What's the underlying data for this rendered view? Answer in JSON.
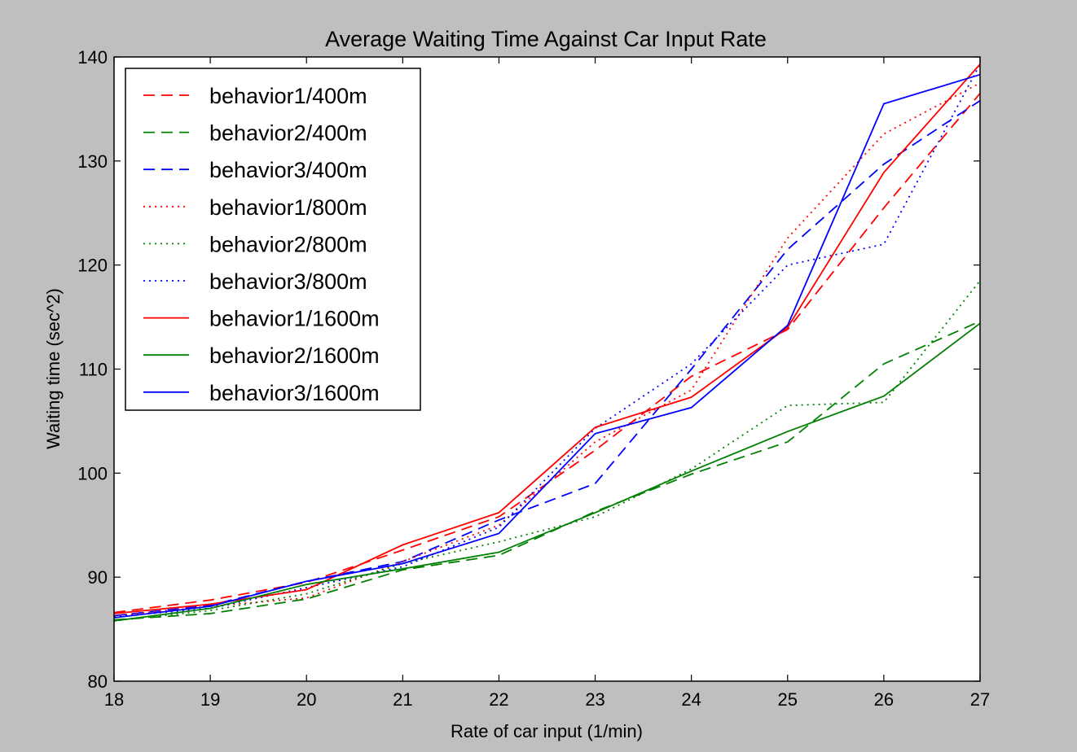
{
  "chart_data": {
    "type": "line",
    "title": "Average Waiting Time Against Car Input Rate",
    "xlabel": "Rate of car input (1/min)",
    "ylabel": "Waiting time (sec^2)",
    "xlim": [
      18,
      27
    ],
    "ylim": [
      80,
      140
    ],
    "xticks": [
      "18",
      "19",
      "20",
      "21",
      "22",
      "23",
      "24",
      "25",
      "26",
      "27"
    ],
    "yticks": [
      "80",
      "90",
      "100",
      "110",
      "120",
      "130",
      "140"
    ],
    "grid": false,
    "legend_position": "top-left",
    "x": [
      18,
      19,
      20,
      21,
      22,
      23,
      24,
      25,
      26,
      27
    ],
    "series": [
      {
        "name": "behavior1/400m",
        "color": "#ff0000",
        "style": "dashed",
        "values": [
          86.6,
          87.8,
          89.5,
          92.6,
          95.8,
          102.2,
          109.3,
          113.8,
          125.5,
          136.5
        ]
      },
      {
        "name": "behavior2/400m",
        "color": "#008000",
        "style": "dashed",
        "values": [
          85.9,
          86.5,
          87.9,
          90.7,
          92.1,
          96.3,
          99.9,
          103.0,
          110.5,
          114.6
        ]
      },
      {
        "name": "behavior3/400m",
        "color": "#0000ff",
        "style": "dashed",
        "values": [
          86.3,
          87.3,
          89.6,
          91.5,
          95.5,
          99.0,
          110.0,
          121.5,
          129.7,
          135.8
        ]
      },
      {
        "name": "behavior1/800m",
        "color": "#ff0000",
        "style": "dotted",
        "values": [
          86.3,
          87.2,
          88.0,
          91.5,
          95.0,
          103.0,
          108.0,
          122.6,
          132.6,
          137.5
        ]
      },
      {
        "name": "behavior2/800m",
        "color": "#008000",
        "style": "dotted",
        "values": [
          85.8,
          86.8,
          88.4,
          91.3,
          93.4,
          95.8,
          100.4,
          106.5,
          106.8,
          118.5
        ]
      },
      {
        "name": "behavior3/800m",
        "color": "#0000ff",
        "style": "dotted",
        "values": [
          86.2,
          87.0,
          89.0,
          91.0,
          94.8,
          104.3,
          110.5,
          120.0,
          122.0,
          139.3
        ]
      },
      {
        "name": "behavior1/1600m",
        "color": "#ff0000",
        "style": "solid",
        "values": [
          86.5,
          87.4,
          88.8,
          93.1,
          96.2,
          104.4,
          107.3,
          114.0,
          128.9,
          139.3
        ]
      },
      {
        "name": "behavior2/1600m",
        "color": "#008000",
        "style": "solid",
        "values": [
          85.8,
          87.0,
          89.3,
          90.8,
          92.4,
          96.2,
          100.2,
          104.0,
          107.4,
          114.4
        ]
      },
      {
        "name": "behavior3/1600m",
        "color": "#0000ff",
        "style": "solid",
        "values": [
          86.1,
          87.2,
          89.6,
          91.3,
          94.2,
          103.8,
          106.3,
          114.2,
          135.5,
          138.3
        ]
      }
    ]
  }
}
